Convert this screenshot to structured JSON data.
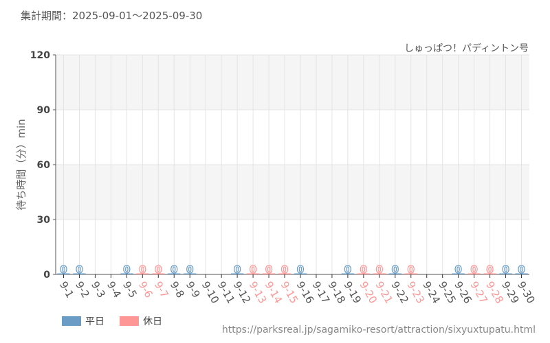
{
  "header": {
    "title": "集計期間：2025-09-01～2025-09-30",
    "subtitle": "しゅっぱつ！パディントン号"
  },
  "footer": {
    "url": "https://parksreal.jp/sagamiko-resort/attraction/sixyuxtupatu.html"
  },
  "colors": {
    "weekday": "#6a9cc6",
    "holiday": "#ff9696",
    "band": "#f5f5f5",
    "grid": "#e4e4e4",
    "axis": "#555555"
  },
  "chart_data": {
    "type": "bar",
    "ylabel": "待ち時間（分）min",
    "ylim": [
      0,
      120
    ],
    "yticks": [
      0,
      30,
      60,
      90,
      120
    ],
    "grid": true,
    "legend_position": "bottom-left",
    "series": [
      {
        "name": "平日"
      },
      {
        "name": "休日"
      }
    ],
    "categories": [
      "9-1",
      "9-2",
      "9-3",
      "9-4",
      "9-5",
      "9-6",
      "9-7",
      "9-8",
      "9-9",
      "9-10",
      "9-11",
      "9-12",
      "9-13",
      "9-14",
      "9-15",
      "9-16",
      "9-17",
      "9-18",
      "9-19",
      "9-20",
      "9-21",
      "9-22",
      "9-23",
      "9-24",
      "9-25",
      "9-26",
      "9-27",
      "9-28",
      "9-29",
      "9-30"
    ],
    "values": [
      0,
      0,
      null,
      null,
      0,
      0,
      0,
      0,
      0,
      null,
      null,
      0,
      0,
      0,
      0,
      0,
      null,
      null,
      0,
      0,
      0,
      0,
      0,
      null,
      null,
      0,
      0,
      0,
      0,
      0
    ],
    "holiday": [
      false,
      false,
      false,
      false,
      false,
      true,
      true,
      false,
      false,
      false,
      false,
      false,
      true,
      true,
      true,
      false,
      false,
      false,
      false,
      true,
      true,
      false,
      true,
      false,
      false,
      false,
      true,
      true,
      false,
      false
    ]
  }
}
